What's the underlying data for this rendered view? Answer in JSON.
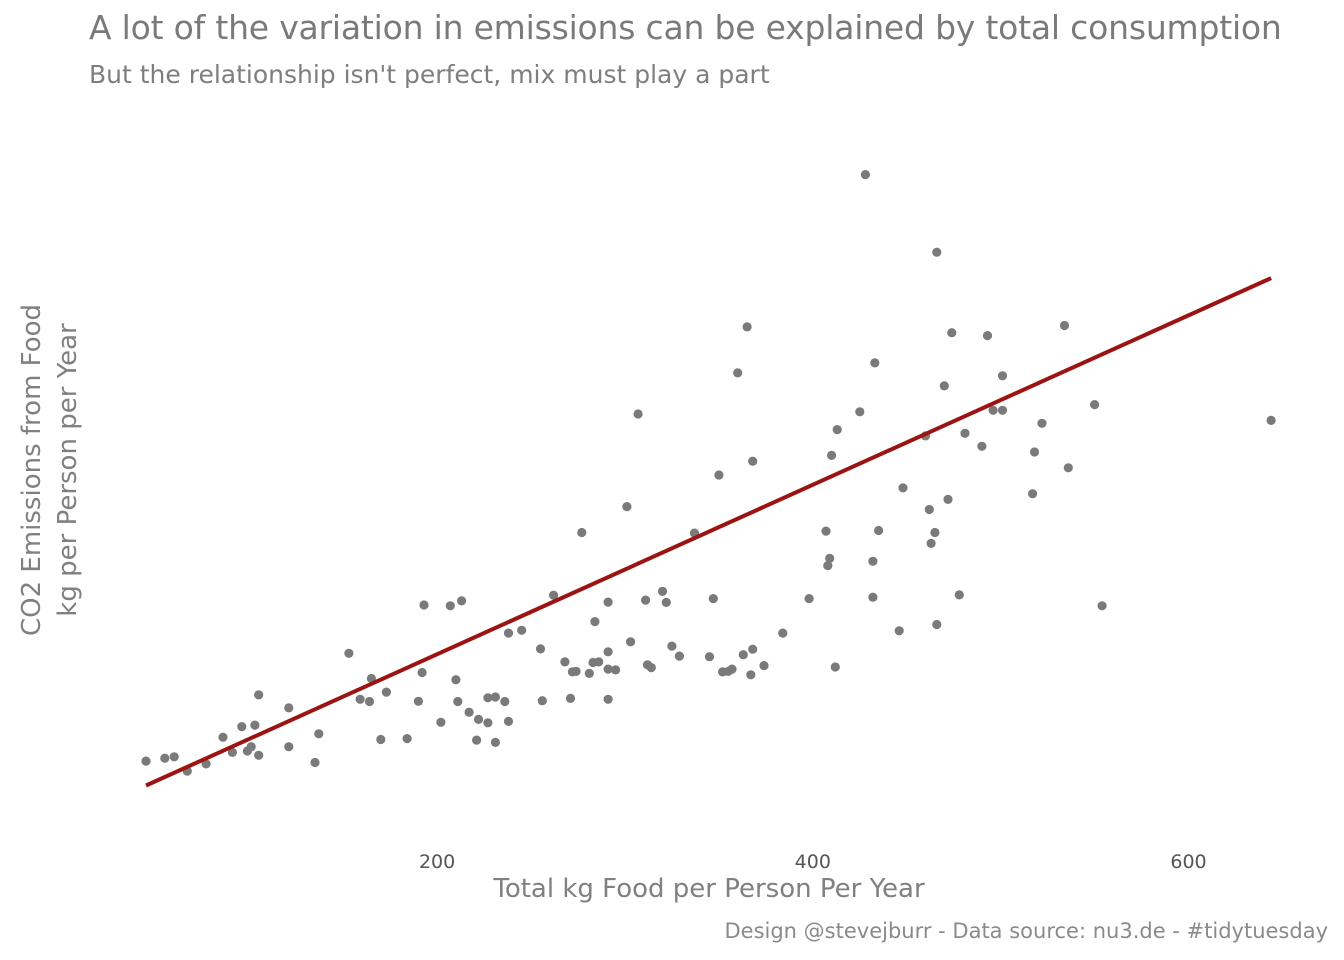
{
  "chart_data": {
    "type": "scatter",
    "title": "A lot of the variation in emissions can be explained by total consumption",
    "subtitle": "But the relationship isn't perfect, mix must play a part",
    "xlabel": "Total kg Food per Person Per Year",
    "ylabel_lines": [
      "CO2 Emissions from Food",
      "kg per Person per Year"
    ],
    "caption": "Design @stevejburr - Data source: nu3.de - #tidytuesday",
    "xlim": [
      45,
      645
    ],
    "ylim": [
      0,
      2400
    ],
    "x_ticks": [
      200,
      400,
      600
    ],
    "y_ticks_visible": false,
    "grid": false,
    "colors": {
      "points": "#7a7a7a",
      "trend": "#9b1313"
    },
    "trend_line": {
      "x": [
        45,
        644
      ],
      "y": [
        120,
        1885
      ]
    },
    "points": [
      {
        "x": 45,
        "y": 205
      },
      {
        "x": 55,
        "y": 215
      },
      {
        "x": 60,
        "y": 220
      },
      {
        "x": 67,
        "y": 170
      },
      {
        "x": 77,
        "y": 195
      },
      {
        "x": 86,
        "y": 288
      },
      {
        "x": 91,
        "y": 235
      },
      {
        "x": 96,
        "y": 325
      },
      {
        "x": 99,
        "y": 240
      },
      {
        "x": 101,
        "y": 255
      },
      {
        "x": 103,
        "y": 330
      },
      {
        "x": 105,
        "y": 435
      },
      {
        "x": 105,
        "y": 225
      },
      {
        "x": 121,
        "y": 390
      },
      {
        "x": 121,
        "y": 255
      },
      {
        "x": 135,
        "y": 200
      },
      {
        "x": 137,
        "y": 300
      },
      {
        "x": 153,
        "y": 580
      },
      {
        "x": 159,
        "y": 420
      },
      {
        "x": 164,
        "y": 412
      },
      {
        "x": 165,
        "y": 492
      },
      {
        "x": 170,
        "y": 280
      },
      {
        "x": 173,
        "y": 445
      },
      {
        "x": 184,
        "y": 283
      },
      {
        "x": 190,
        "y": 413
      },
      {
        "x": 192,
        "y": 513
      },
      {
        "x": 193,
        "y": 748
      },
      {
        "x": 202,
        "y": 340
      },
      {
        "x": 207,
        "y": 745
      },
      {
        "x": 210,
        "y": 488
      },
      {
        "x": 211,
        "y": 412
      },
      {
        "x": 213,
        "y": 762
      },
      {
        "x": 217,
        "y": 375
      },
      {
        "x": 221,
        "y": 278
      },
      {
        "x": 222,
        "y": 350
      },
      {
        "x": 227,
        "y": 338
      },
      {
        "x": 227,
        "y": 425
      },
      {
        "x": 231,
        "y": 270
      },
      {
        "x": 231,
        "y": 428
      },
      {
        "x": 236,
        "y": 412
      },
      {
        "x": 238,
        "y": 343
      },
      {
        "x": 238,
        "y": 650
      },
      {
        "x": 245,
        "y": 660
      },
      {
        "x": 255,
        "y": 595
      },
      {
        "x": 256,
        "y": 415
      },
      {
        "x": 262,
        "y": 782
      },
      {
        "x": 268,
        "y": 550
      },
      {
        "x": 271,
        "y": 423
      },
      {
        "x": 272,
        "y": 515
      },
      {
        "x": 274,
        "y": 517
      },
      {
        "x": 277,
        "y": 1000
      },
      {
        "x": 281,
        "y": 510
      },
      {
        "x": 283,
        "y": 548
      },
      {
        "x": 284,
        "y": 690
      },
      {
        "x": 286,
        "y": 550
      },
      {
        "x": 291,
        "y": 758
      },
      {
        "x": 291,
        "y": 420
      },
      {
        "x": 291,
        "y": 585
      },
      {
        "x": 291,
        "y": 525
      },
      {
        "x": 295,
        "y": 522
      },
      {
        "x": 301,
        "y": 1090
      },
      {
        "x": 303,
        "y": 620
      },
      {
        "x": 307,
        "y": 1412
      },
      {
        "x": 311,
        "y": 765
      },
      {
        "x": 312,
        "y": 540
      },
      {
        "x": 314,
        "y": 530
      },
      {
        "x": 320,
        "y": 795
      },
      {
        "x": 322,
        "y": 757
      },
      {
        "x": 325,
        "y": 605
      },
      {
        "x": 329,
        "y": 570
      },
      {
        "x": 337,
        "y": 998
      },
      {
        "x": 345,
        "y": 568
      },
      {
        "x": 347,
        "y": 770
      },
      {
        "x": 350,
        "y": 1200
      },
      {
        "x": 352,
        "y": 515
      },
      {
        "x": 355,
        "y": 517
      },
      {
        "x": 357,
        "y": 525
      },
      {
        "x": 360,
        "y": 1555
      },
      {
        "x": 363,
        "y": 575
      },
      {
        "x": 365,
        "y": 1715
      },
      {
        "x": 367,
        "y": 505
      },
      {
        "x": 368,
        "y": 1248
      },
      {
        "x": 368,
        "y": 594
      },
      {
        "x": 374,
        "y": 537
      },
      {
        "x": 384,
        "y": 650
      },
      {
        "x": 398,
        "y": 770
      },
      {
        "x": 407,
        "y": 1005
      },
      {
        "x": 408,
        "y": 885
      },
      {
        "x": 409,
        "y": 910
      },
      {
        "x": 410,
        "y": 1268
      },
      {
        "x": 412,
        "y": 532
      },
      {
        "x": 413,
        "y": 1358
      },
      {
        "x": 425,
        "y": 1420
      },
      {
        "x": 428,
        "y": 2245
      },
      {
        "x": 432,
        "y": 775
      },
      {
        "x": 432,
        "y": 900
      },
      {
        "x": 433,
        "y": 1590
      },
      {
        "x": 435,
        "y": 1007
      },
      {
        "x": 446,
        "y": 658
      },
      {
        "x": 448,
        "y": 1155
      },
      {
        "x": 460,
        "y": 1336
      },
      {
        "x": 462,
        "y": 1080
      },
      {
        "x": 463,
        "y": 962
      },
      {
        "x": 465,
        "y": 1000
      },
      {
        "x": 466,
        "y": 680
      },
      {
        "x": 466,
        "y": 1975
      },
      {
        "x": 470,
        "y": 1510
      },
      {
        "x": 472,
        "y": 1115
      },
      {
        "x": 474,
        "y": 1695
      },
      {
        "x": 478,
        "y": 783
      },
      {
        "x": 481,
        "y": 1345
      },
      {
        "x": 490,
        "y": 1300
      },
      {
        "x": 493,
        "y": 1685
      },
      {
        "x": 496,
        "y": 1425
      },
      {
        "x": 501,
        "y": 1545
      },
      {
        "x": 501,
        "y": 1425
      },
      {
        "x": 517,
        "y": 1135
      },
      {
        "x": 518,
        "y": 1280
      },
      {
        "x": 522,
        "y": 1380
      },
      {
        "x": 534,
        "y": 1720
      },
      {
        "x": 536,
        "y": 1225
      },
      {
        "x": 550,
        "y": 1445
      },
      {
        "x": 554,
        "y": 745
      },
      {
        "x": 644,
        "y": 1390
      }
    ]
  }
}
